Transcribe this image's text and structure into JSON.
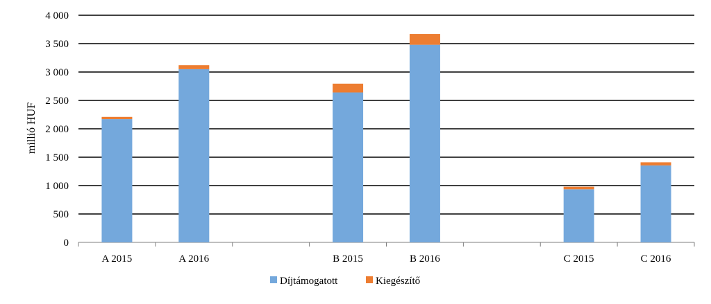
{
  "chart_data": {
    "type": "bar",
    "stacked": true,
    "categories": [
      "A 2015",
      "A 2016",
      "",
      "B 2015",
      "B 2016",
      "",
      "C 2015",
      "C 2016"
    ],
    "series": [
      {
        "name": "Díjtámogatott",
        "color": "#74A8DC",
        "values": [
          2170,
          3050,
          null,
          2640,
          3480,
          null,
          935,
          1355
        ]
      },
      {
        "name": "Kiegészítő",
        "color": "#ED7D31",
        "values": [
          40,
          70,
          null,
          155,
          190,
          null,
          45,
          55
        ]
      }
    ],
    "ylabel": "millió  HUF",
    "ylim": [
      0,
      4000
    ],
    "yticks": [
      0,
      500,
      1000,
      1500,
      2000,
      2500,
      3000,
      3500,
      4000
    ],
    "ytick_labels": [
      "0",
      "500",
      "1 000",
      "1 500",
      "2 000",
      "2 500",
      "3 000",
      "3 500",
      "4 000"
    ],
    "grid": true,
    "legend_position": "bottom"
  }
}
